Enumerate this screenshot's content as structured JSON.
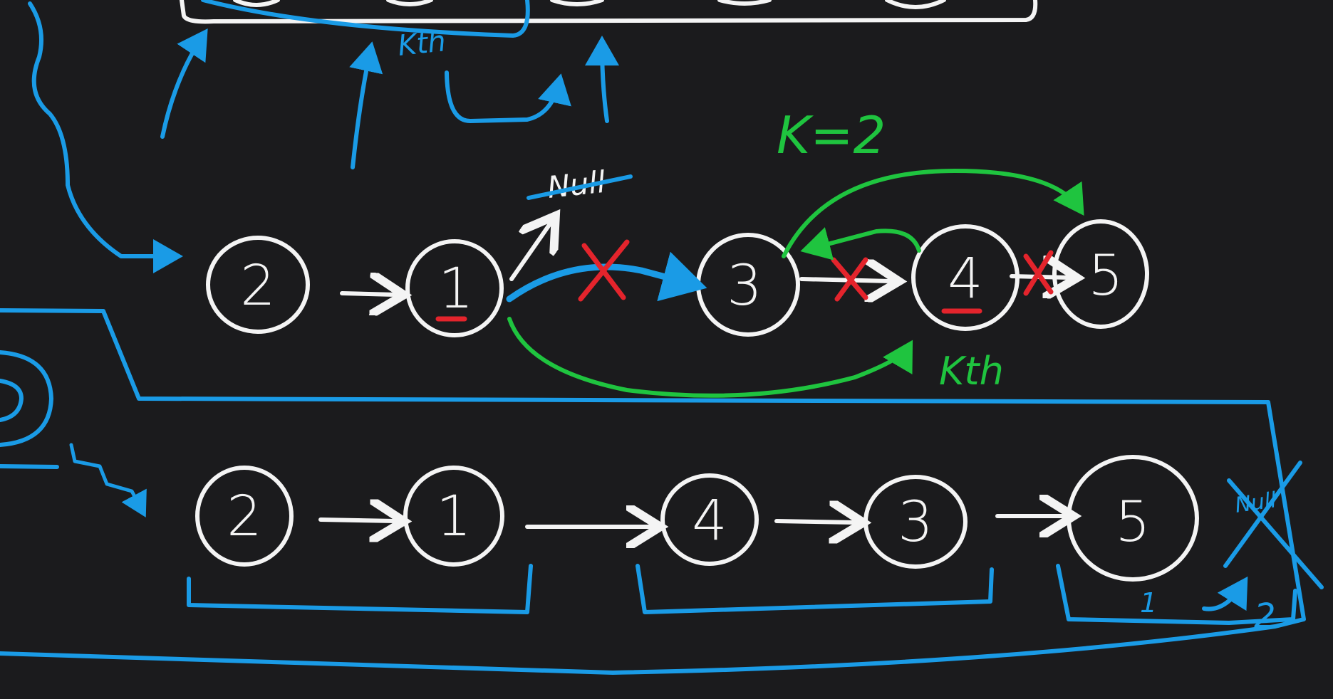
{
  "colors": {
    "background": "#1b1b1d",
    "white_ink": "#f4f4f4",
    "blue_ink": "#1a9be6",
    "green_ink": "#1fc43f",
    "red_ink": "#e4242c"
  },
  "annotations": {
    "top_kth": "Kth",
    "k_equals": "K=2",
    "null_struck": "Null",
    "kth_green": "Kth",
    "null_bottom_struck": "Null",
    "step_one": "1",
    "step_two": "2"
  },
  "upper_list": {
    "nodes": [
      "2",
      "1",
      "3",
      "4",
      "5"
    ]
  },
  "lower_list": {
    "nodes": [
      "2",
      "1",
      "4",
      "3",
      "5"
    ]
  }
}
